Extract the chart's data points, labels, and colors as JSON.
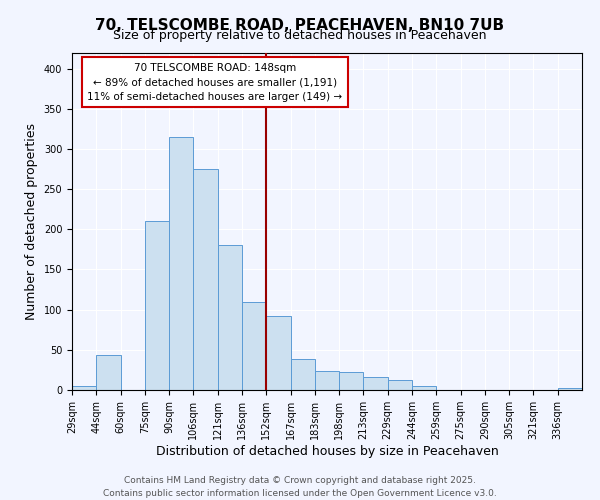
{
  "title": "70, TELSCOMBE ROAD, PEACEHAVEN, BN10 7UB",
  "subtitle": "Size of property relative to detached houses in Peacehaven",
  "xlabel": "Distribution of detached houses by size in Peacehaven",
  "ylabel": "Number of detached properties",
  "bin_labels": [
    "29sqm",
    "44sqm",
    "60sqm",
    "75sqm",
    "90sqm",
    "106sqm",
    "121sqm",
    "136sqm",
    "152sqm",
    "167sqm",
    "183sqm",
    "198sqm",
    "213sqm",
    "229sqm",
    "244sqm",
    "259sqm",
    "275sqm",
    "290sqm",
    "305sqm",
    "321sqm",
    "336sqm"
  ],
  "bar_heights": [
    5,
    44,
    0,
    210,
    315,
    275,
    180,
    110,
    92,
    38,
    24,
    23,
    16,
    13,
    5,
    0,
    0,
    0,
    0,
    0,
    2
  ],
  "bar_color": "#cce0f0",
  "bar_edge_color": "#5b9bd5",
  "vline_bin": 8,
  "vline_color": "#990000",
  "ylim": [
    0,
    420
  ],
  "yticks": [
    0,
    50,
    100,
    150,
    200,
    250,
    300,
    350,
    400
  ],
  "annotation_title": "70 TELSCOMBE ROAD: 148sqm",
  "annotation_line1": "← 89% of detached houses are smaller (1,191)",
  "annotation_line2": "11% of semi-detached houses are larger (149) →",
  "annotation_box_color": "#ffffff",
  "annotation_box_edge": "#cc0000",
  "footer1": "Contains HM Land Registry data © Crown copyright and database right 2025.",
  "footer2": "Contains public sector information licensed under the Open Government Licence v3.0.",
  "bg_color": "#f2f5ff",
  "plot_bg_color": "#f2f5ff",
  "grid_color": "#ffffff",
  "title_fontsize": 11,
  "subtitle_fontsize": 9,
  "axis_label_fontsize": 9,
  "tick_fontsize": 7,
  "annotation_fontsize": 7.5,
  "footer_fontsize": 6.5
}
